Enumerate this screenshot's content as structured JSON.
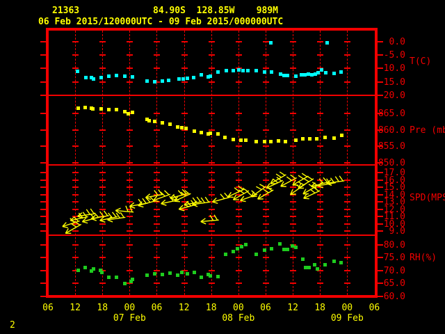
{
  "header": {
    "station_id": "21363",
    "location": "84.90S  128.85W    989M",
    "period": "06 Feb 2015/120000UTC - 09 Feb 2015/000000UTC"
  },
  "page_number": "2",
  "colors": {
    "background": "#000000",
    "grid_red": "#f20000",
    "label_red": "#f20000",
    "text_yellow": "#ffff00",
    "temp_cyan": "#00ffff",
    "pressure_yellow": "#ffff00",
    "wind_yellow": "#ffff00",
    "rh_green": "#1ecc1e"
  },
  "chart_data": {
    "type": "meteogram",
    "title": "Station 21363 meteogram 06 Feb 2015 12UTC - 09 Feb 2015 00UTC",
    "x_axis": {
      "unit": "hours since 2015-02-06 06UTC",
      "tick_step_hours": 6,
      "hour_labels": [
        "06",
        "12",
        "18",
        "00",
        "06",
        "12",
        "18",
        "00",
        "06",
        "12",
        "18",
        "00",
        "06"
      ],
      "date_labels": [
        {
          "t": 18,
          "label": "07 Feb"
        },
        {
          "t": 42,
          "label": "08 Feb"
        },
        {
          "t": 66,
          "label": "09 Feb"
        }
      ],
      "grid": true
    },
    "panels": [
      {
        "id": "temperature",
        "label": "T(C)",
        "type": "scatter",
        "color_key": "temp_cyan",
        "yticks": [
          0.0,
          -5.0,
          -10.0,
          -15.0,
          -20.0
        ],
        "ylim": {
          "top": 4.0,
          "bottom": -20.0
        },
        "points": [
          [
            6.5,
            -10.9
          ],
          [
            8.3,
            -13.3
          ],
          [
            9.5,
            -13.3
          ],
          [
            10.0,
            -13.8
          ],
          [
            11.7,
            -13.3
          ],
          [
            13.4,
            -12.8
          ],
          [
            15.1,
            -12.5
          ],
          [
            16.8,
            -12.8
          ],
          [
            18.5,
            -13.0
          ],
          [
            21.8,
            -14.6
          ],
          [
            23.4,
            -14.8
          ],
          [
            25.1,
            -14.6
          ],
          [
            26.6,
            -14.3
          ],
          [
            28.8,
            -13.8
          ],
          [
            29.7,
            -13.8
          ],
          [
            30.6,
            -13.5
          ],
          [
            32.0,
            -13.3
          ],
          [
            33.7,
            -12.2
          ],
          [
            35.2,
            -13.0
          ],
          [
            35.8,
            -12.8
          ],
          [
            37.4,
            -11.2
          ],
          [
            39.2,
            -10.7
          ],
          [
            40.8,
            -10.7
          ],
          [
            42.0,
            -10.4
          ],
          [
            43.0,
            -10.7
          ],
          [
            44.0,
            -10.7
          ],
          [
            45.8,
            -10.7
          ],
          [
            47.7,
            -11.2
          ],
          [
            49.1,
            -0.3
          ],
          [
            49.2,
            -11.2
          ],
          [
            51.2,
            -12.0
          ],
          [
            52.0,
            -12.5
          ],
          [
            52.8,
            -12.5
          ],
          [
            54.6,
            -12.8
          ],
          [
            55.8,
            -12.2
          ],
          [
            56.6,
            -12.2
          ],
          [
            57.4,
            -12.0
          ],
          [
            58.2,
            -12.2
          ],
          [
            58.9,
            -12.0
          ],
          [
            59.5,
            -11.5
          ],
          [
            60.2,
            -10.4
          ],
          [
            61.2,
            -11.5
          ],
          [
            61.5,
            -0.3
          ],
          [
            63.1,
            -11.7
          ],
          [
            64.6,
            -11.2
          ]
        ]
      },
      {
        "id": "pressure",
        "label": "Pre (mb)",
        "type": "scatter",
        "color_key": "pressure_yellow",
        "yticks": [
          865.0,
          860.0,
          855.0,
          850.0
        ],
        "ylim": {
          "top": 869.5,
          "bottom": 849.5
        },
        "points": [
          [
            6.6,
            866.7
          ],
          [
            8.2,
            866.9
          ],
          [
            9.5,
            866.7
          ],
          [
            9.8,
            866.5
          ],
          [
            11.7,
            866.5
          ],
          [
            13.4,
            866.3
          ],
          [
            15.1,
            866.3
          ],
          [
            16.8,
            865.6
          ],
          [
            17.7,
            865.0
          ],
          [
            18.6,
            865.4
          ],
          [
            21.8,
            863.3
          ],
          [
            22.2,
            862.9
          ],
          [
            23.4,
            862.7
          ],
          [
            25.1,
            862.2
          ],
          [
            26.8,
            861.8
          ],
          [
            28.6,
            861.0
          ],
          [
            29.5,
            860.8
          ],
          [
            30.3,
            860.6
          ],
          [
            32.2,
            859.7
          ],
          [
            33.7,
            859.3
          ],
          [
            35.2,
            858.9
          ],
          [
            35.7,
            859.1
          ],
          [
            37.4,
            858.9
          ],
          [
            38.9,
            857.8
          ],
          [
            40.8,
            857.2
          ],
          [
            42.5,
            857.0
          ],
          [
            43.5,
            857.0
          ],
          [
            45.8,
            856.5
          ],
          [
            47.7,
            856.5
          ],
          [
            49.1,
            856.5
          ],
          [
            50.8,
            856.7
          ],
          [
            52.3,
            856.5
          ],
          [
            54.6,
            857.0
          ],
          [
            56.2,
            857.4
          ],
          [
            57.7,
            857.4
          ],
          [
            59.2,
            857.4
          ],
          [
            61.1,
            857.8
          ],
          [
            63.1,
            857.6
          ],
          [
            64.8,
            858.5
          ]
        ]
      },
      {
        "id": "wind_speed",
        "label": "SPD(MPS)",
        "type": "wind_barb",
        "color_key": "wind_yellow",
        "yticks": [
          17.0,
          16.0,
          15.0,
          14.0,
          13.0,
          12.0,
          11.0,
          10.0,
          9.0
        ],
        "ylim": {
          "top": 18.0,
          "bottom": 8.5
        },
        "points": [
          [
            5.1,
            10.0,
            -18
          ],
          [
            5.6,
            9.3,
            -30
          ],
          [
            6.9,
            10.7,
            -12
          ],
          [
            8.5,
            11.2,
            -8
          ],
          [
            9.5,
            10.6,
            -15
          ],
          [
            11.5,
            10.9,
            -10
          ],
          [
            13.4,
            10.7,
            -12
          ],
          [
            15.1,
            10.7,
            -8
          ],
          [
            16.9,
            11.7,
            5
          ],
          [
            20.0,
            12.6,
            -10
          ],
          [
            21.8,
            12.8,
            -15
          ],
          [
            23.5,
            13.8,
            -10
          ],
          [
            25.1,
            13.6,
            -20
          ],
          [
            26.9,
            13.0,
            -12
          ],
          [
            28.9,
            13.8,
            -15
          ],
          [
            29.7,
            13.6,
            -25
          ],
          [
            30.8,
            12.3,
            -15
          ],
          [
            32.0,
            12.8,
            -10
          ],
          [
            33.8,
            12.8,
            -8
          ],
          [
            35.7,
            10.4,
            -5
          ],
          [
            38.2,
            13.3,
            -15
          ],
          [
            41.5,
            14.2,
            -25
          ],
          [
            42.6,
            13.9,
            -30
          ],
          [
            44.3,
            13.6,
            -20
          ],
          [
            46.5,
            14.4,
            -35
          ],
          [
            48.0,
            14.0,
            -30
          ],
          [
            50.0,
            15.4,
            -25
          ],
          [
            50.8,
            16.1,
            -30
          ],
          [
            53.1,
            15.7,
            -28
          ],
          [
            55.1,
            14.7,
            -35
          ],
          [
            55.7,
            15.9,
            -30
          ],
          [
            56.9,
            15.5,
            -32
          ],
          [
            58.0,
            14.7,
            -30
          ],
          [
            58.2,
            14.0,
            -25
          ],
          [
            60.0,
            15.4,
            -15
          ],
          [
            61.5,
            15.4,
            -10
          ],
          [
            63.4,
            15.7,
            -8
          ]
        ]
      },
      {
        "id": "humidity",
        "label": "RH(%)",
        "type": "scatter",
        "color_key": "rh_green",
        "yticks": [
          80.0,
          75.0,
          70.0,
          65.0,
          60.0
        ],
        "ylim": {
          "top": 84.0,
          "bottom": 60.0
        },
        "points": [
          [
            6.6,
            70.2
          ],
          [
            8.2,
            71.3
          ],
          [
            9.5,
            69.9
          ],
          [
            10.0,
            70.8
          ],
          [
            11.5,
            70.2
          ],
          [
            11.8,
            69.4
          ],
          [
            13.4,
            67.5
          ],
          [
            15.1,
            67.5
          ],
          [
            16.9,
            65.1
          ],
          [
            18.2,
            65.9
          ],
          [
            18.5,
            66.7
          ],
          [
            21.8,
            68.3
          ],
          [
            23.4,
            68.9
          ],
          [
            25.1,
            68.6
          ],
          [
            26.9,
            69.1
          ],
          [
            28.6,
            68.3
          ],
          [
            29.5,
            69.4
          ],
          [
            30.6,
            68.9
          ],
          [
            32.2,
            69.4
          ],
          [
            33.8,
            67.5
          ],
          [
            35.2,
            68.6
          ],
          [
            35.7,
            68.0
          ],
          [
            37.4,
            67.8
          ],
          [
            39.1,
            76.5
          ],
          [
            40.8,
            77.6
          ],
          [
            41.7,
            78.6
          ],
          [
            42.6,
            79.5
          ],
          [
            43.5,
            80.3
          ],
          [
            45.8,
            76.5
          ],
          [
            47.7,
            78.1
          ],
          [
            49.2,
            78.6
          ],
          [
            51.1,
            80.5
          ],
          [
            52.0,
            78.4
          ],
          [
            52.8,
            78.4
          ],
          [
            53.8,
            79.7
          ],
          [
            54.6,
            79.2
          ],
          [
            56.2,
            74.6
          ],
          [
            56.8,
            71.3
          ],
          [
            57.5,
            71.3
          ],
          [
            58.8,
            72.4
          ],
          [
            59.4,
            70.8
          ],
          [
            61.1,
            72.4
          ],
          [
            63.1,
            73.8
          ],
          [
            64.6,
            73.3
          ]
        ]
      }
    ]
  }
}
